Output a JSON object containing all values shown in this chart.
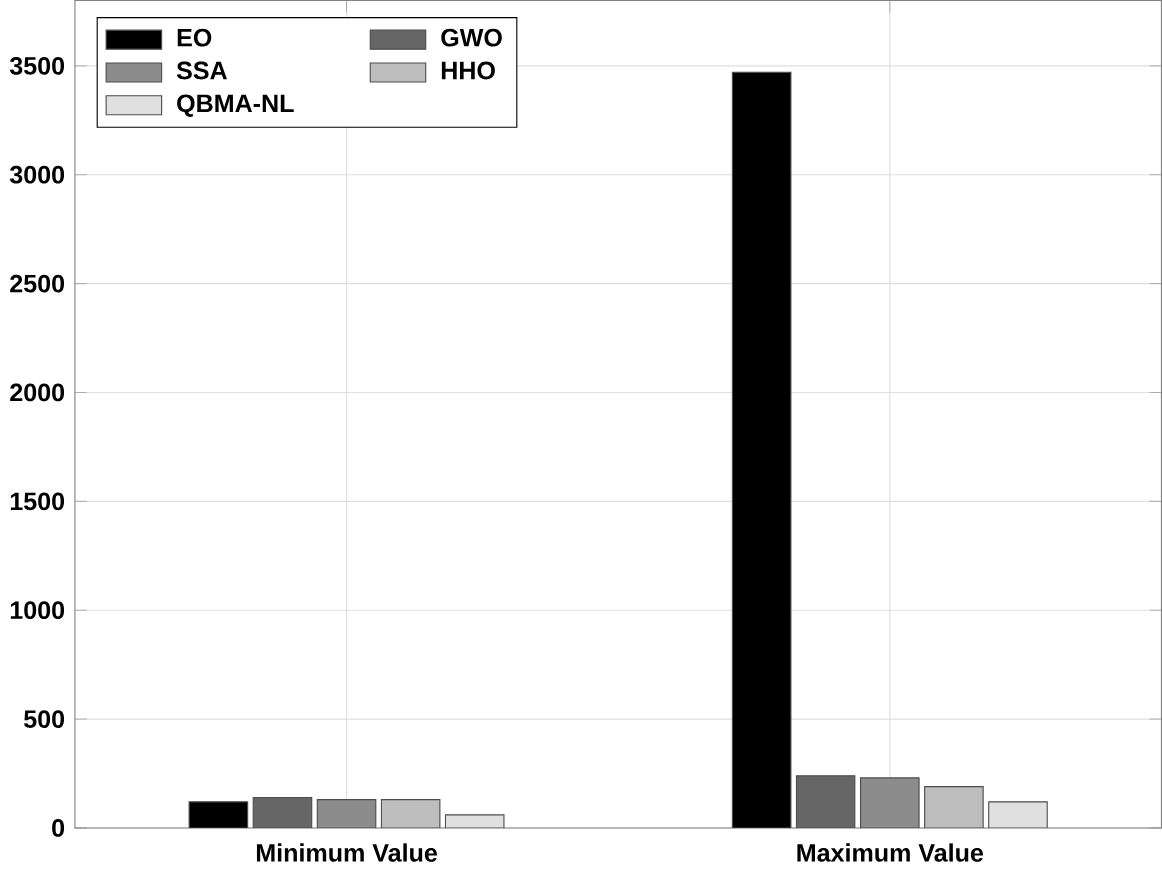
{
  "chart_data": {
    "type": "bar",
    "categories": [
      "Minimum Value",
      "Maximum Value"
    ],
    "series": [
      {
        "name": "EO",
        "color": "#000000",
        "values": [
          120,
          3470
        ]
      },
      {
        "name": "GWO",
        "color": "#666666",
        "values": [
          140,
          240
        ]
      },
      {
        "name": "SSA",
        "color": "#8c8c8c",
        "values": [
          130,
          230
        ]
      },
      {
        "name": "HHO",
        "color": "#bdbdbd",
        "values": [
          130,
          190
        ]
      },
      {
        "name": "QBMA-NL",
        "color": "#e0e0e0",
        "values": [
          60,
          120
        ]
      }
    ],
    "ylim": [
      0,
      3800
    ],
    "yticks": [
      0,
      500,
      1000,
      1500,
      2000,
      2500,
      3000,
      3500
    ],
    "grid": true,
    "legend": "top left"
  }
}
